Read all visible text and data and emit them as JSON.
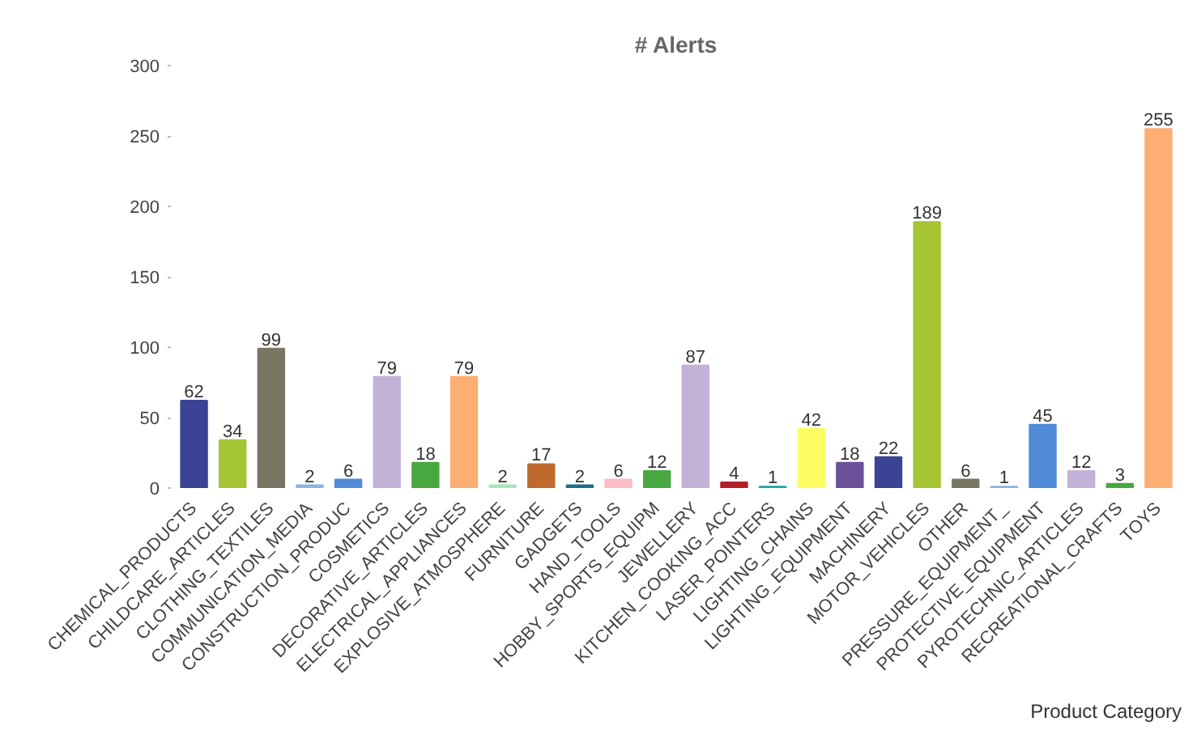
{
  "chart_data": {
    "type": "bar",
    "title": "# Alerts",
    "xlabel": "Product Category",
    "categories": [
      "CHEMICAL_PRODUCTS",
      "CHILDCARE_ARTICLES",
      "CLOTHING_TEXTILES",
      "COMMUNICATION_MEDIA",
      "CONSTRUCTION_PRODUC",
      "COSMETICS",
      "DECORATIVE_ARTICLES",
      "ELECTRICAL_APPLIANCES",
      "EXPLOSIVE_ATMOSPHERE",
      "FURNITURE",
      "GADGETS",
      "HAND_TOOLS",
      "HOBBY_SPORTS_EQUIPM",
      "JEWELLERY",
      "KITCHEN_COOKING_ACC",
      "LASER_POINTERS",
      "LIGHTING_CHAINS",
      "LIGHTING_EQUIPMENT",
      "MACHINERY",
      "MOTOR_VEHICLES",
      "OTHER",
      "PRESSURE_EQUIPMENT_",
      "PROTECTIVE_EQUIPMENT",
      "PYROTECHNIC_ARTICLES",
      "RECREATIONAL_CRAFTS",
      "TOYS"
    ],
    "values": [
      62,
      34,
      99,
      2,
      6,
      79,
      18,
      79,
      2,
      17,
      2,
      6,
      12,
      87,
      4,
      1,
      42,
      18,
      22,
      189,
      6,
      1,
      45,
      12,
      3,
      255
    ],
    "colors": [
      "#3b4395",
      "#a5c535",
      "#787662",
      "#8cb4e2",
      "#4f8bd6",
      "#c3b1d7",
      "#48a83f",
      "#fdae72",
      "#a8e6bc",
      "#bf6a2d",
      "#1e6e8c",
      "#fbbcc5",
      "#48a83f",
      "#c3b1d7",
      "#b0202a",
      "#1aa6a6",
      "#fdfc60",
      "#6a519a",
      "#3b4395",
      "#a5c535",
      "#787662",
      "#8cb4e2",
      "#4f8bd6",
      "#c3b1d7",
      "#48a83f",
      "#fdae72"
    ],
    "ylim": [
      0,
      300
    ],
    "yticks": [
      0,
      50,
      100,
      150,
      200,
      250,
      300
    ],
    "data_labels": true,
    "grid": false
  }
}
